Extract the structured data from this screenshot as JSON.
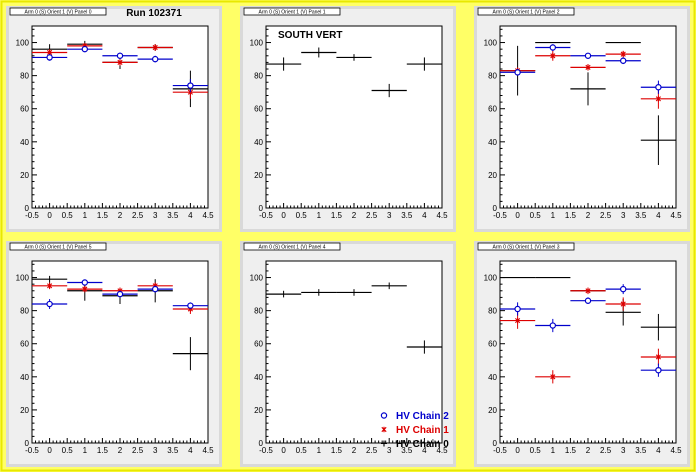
{
  "colors": {
    "background": "#ffff66",
    "series": {
      "HV Chain 2": "#0000cc",
      "HV Chain 1": "#dd0000",
      "HV Chain 0": "#000000"
    }
  },
  "legend": {
    "entries": [
      {
        "name": "HV Chain 2",
        "color": "#0000cc",
        "marker": "open-circle"
      },
      {
        "name": "HV Chain 1",
        "color": "#dd0000",
        "marker": "star"
      },
      {
        "name": "HV Chain 0",
        "color": "#000000",
        "marker": "cross"
      }
    ]
  },
  "chart_data": [
    {
      "type": "scatter",
      "title": "Arm 0 (S) Orient 1 (V) Panel 0",
      "annotation": "Run 102371",
      "xlim": [
        -0.5,
        4.5
      ],
      "ylim": [
        0,
        110
      ],
      "xticks": [
        "-0.5",
        "0",
        "0.5",
        "1",
        "1.5",
        "2",
        "2.5",
        "3",
        "3.5",
        "4",
        "4.5"
      ],
      "yticks": [
        "0",
        "20",
        "40",
        "60",
        "80",
        "100"
      ],
      "series": [
        {
          "name": "HV Chain 0",
          "x": [
            0,
            1,
            2,
            3,
            4
          ],
          "y": [
            96,
            99,
            88,
            97,
            72
          ],
          "yerr": [
            3,
            2,
            4,
            2,
            11
          ]
        },
        {
          "name": "HV Chain 1",
          "x": [
            0,
            1,
            2,
            3,
            4
          ],
          "y": [
            94,
            98,
            88,
            97,
            70
          ],
          "yerr": [
            2,
            1,
            2,
            2,
            4
          ]
        },
        {
          "name": "HV Chain 2",
          "x": [
            0,
            1,
            2,
            3,
            4
          ],
          "y": [
            91,
            96,
            92,
            90,
            74
          ],
          "yerr": [
            2,
            1,
            2,
            2,
            4
          ]
        }
      ]
    },
    {
      "type": "scatter",
      "title": "Arm 0 (S) Orient 1 (V) Panel 1",
      "annotation": "SOUTH VERT",
      "xlim": [
        -0.5,
        4.5
      ],
      "ylim": [
        0,
        110
      ],
      "xticks": [
        "-0.5",
        "0",
        "0.5",
        "1",
        "1.5",
        "2",
        "2.5",
        "3",
        "3.5",
        "4",
        "4.5"
      ],
      "yticks": [
        "0",
        "20",
        "40",
        "60",
        "80",
        "100"
      ],
      "series": [
        {
          "name": "HV Chain 0",
          "x": [
            0,
            1,
            2,
            3,
            4
          ],
          "y": [
            87,
            94,
            91,
            71,
            87
          ],
          "yerr": [
            4,
            3,
            2,
            4,
            4
          ]
        }
      ]
    },
    {
      "type": "scatter",
      "title": "Arm 0 (S) Orient 1 (V) Panel 2",
      "annotation": "",
      "xlim": [
        -0.5,
        4.5
      ],
      "ylim": [
        0,
        110
      ],
      "xticks": [
        "-0.5",
        "0",
        "0.5",
        "1",
        "1.5",
        "2",
        "2.5",
        "3",
        "3.5",
        "4",
        "4.5"
      ],
      "yticks": [
        "0",
        "20",
        "40",
        "60",
        "80",
        "100"
      ],
      "series": [
        {
          "name": "HV Chain 0",
          "x": [
            0,
            1,
            2,
            3,
            4
          ],
          "y": [
            83,
            100,
            72,
            100,
            41
          ],
          "yerr": [
            15,
            0,
            10,
            0,
            15
          ]
        },
        {
          "name": "HV Chain 1",
          "x": [
            0,
            1,
            2,
            3,
            4
          ],
          "y": [
            83,
            92,
            85,
            93,
            66
          ],
          "yerr": [
            2,
            3,
            2,
            2,
            6
          ]
        },
        {
          "name": "HV Chain 2",
          "x": [
            0,
            1,
            2,
            3,
            4
          ],
          "y": [
            82,
            97,
            92,
            89,
            73
          ],
          "yerr": [
            2,
            2,
            1,
            2,
            4
          ]
        }
      ]
    },
    {
      "type": "scatter",
      "title": "Arm 0 (S) Orient 1 (V) Panel 5",
      "annotation": "",
      "xlim": [
        -0.5,
        4.5
      ],
      "ylim": [
        0,
        110
      ],
      "xticks": [
        "-0.5",
        "0",
        "0.5",
        "1",
        "1.5",
        "2",
        "2.5",
        "3",
        "3.5",
        "4",
        "4.5"
      ],
      "yticks": [
        "0",
        "20",
        "40",
        "60",
        "80",
        "100"
      ],
      "series": [
        {
          "name": "HV Chain 0",
          "x": [
            0,
            1,
            2,
            3,
            4
          ],
          "y": [
            99,
            92,
            89,
            92,
            54
          ],
          "yerr": [
            2,
            6,
            5,
            7,
            10
          ]
        },
        {
          "name": "HV Chain 1",
          "x": [
            0,
            1,
            2,
            3,
            4
          ],
          "y": [
            95,
            93,
            92,
            95,
            81
          ],
          "yerr": [
            2,
            2,
            2,
            2,
            3
          ]
        },
        {
          "name": "HV Chain 2",
          "x": [
            0,
            1,
            2,
            3,
            4
          ],
          "y": [
            84,
            97,
            90,
            93,
            83
          ],
          "yerr": [
            3,
            1,
            2,
            2,
            2
          ]
        }
      ]
    },
    {
      "type": "scatter",
      "title": "Arm 0 (S) Orient 1 (V) Panel 4",
      "annotation": "",
      "xlim": [
        -0.5,
        4.5
      ],
      "ylim": [
        0,
        110
      ],
      "xticks": [
        "-0.5",
        "0",
        "0.5",
        "1",
        "1.5",
        "2",
        "2.5",
        "3",
        "3.5",
        "4",
        "4.5"
      ],
      "yticks": [
        "0",
        "20",
        "40",
        "60",
        "80",
        "100"
      ],
      "series": [
        {
          "name": "HV Chain 0",
          "x": [
            0,
            1,
            2,
            3,
            4
          ],
          "y": [
            90,
            91,
            91,
            95,
            58
          ],
          "yerr": [
            2,
            2,
            2,
            2,
            4
          ]
        }
      ]
    },
    {
      "type": "scatter",
      "title": "Arm 0 (S) Orient 1 (V) Panel 3",
      "annotation": "",
      "xlim": [
        -0.5,
        4.5
      ],
      "ylim": [
        0,
        110
      ],
      "xticks": [
        "-0.5",
        "0",
        "0.5",
        "1",
        "1.5",
        "2",
        "2.5",
        "3",
        "3.5",
        "4",
        "4.5"
      ],
      "yticks": [
        "0",
        "20",
        "40",
        "60",
        "80",
        "100"
      ],
      "series": [
        {
          "name": "HV Chain 0",
          "x": [
            0,
            1,
            2,
            3,
            4
          ],
          "y": [
            100,
            100,
            92,
            79,
            70
          ],
          "yerr": [
            0,
            0,
            0,
            8,
            8
          ]
        },
        {
          "name": "HV Chain 1",
          "x": [
            0,
            1,
            2,
            3,
            4
          ],
          "y": [
            74,
            40,
            92,
            84,
            52
          ],
          "yerr": [
            5,
            4,
            2,
            4,
            5
          ]
        },
        {
          "name": "HV Chain 2",
          "x": [
            0,
            1,
            2,
            3,
            4
          ],
          "y": [
            81,
            71,
            86,
            93,
            44
          ],
          "yerr": [
            4,
            4,
            2,
            3,
            4
          ]
        }
      ]
    }
  ]
}
